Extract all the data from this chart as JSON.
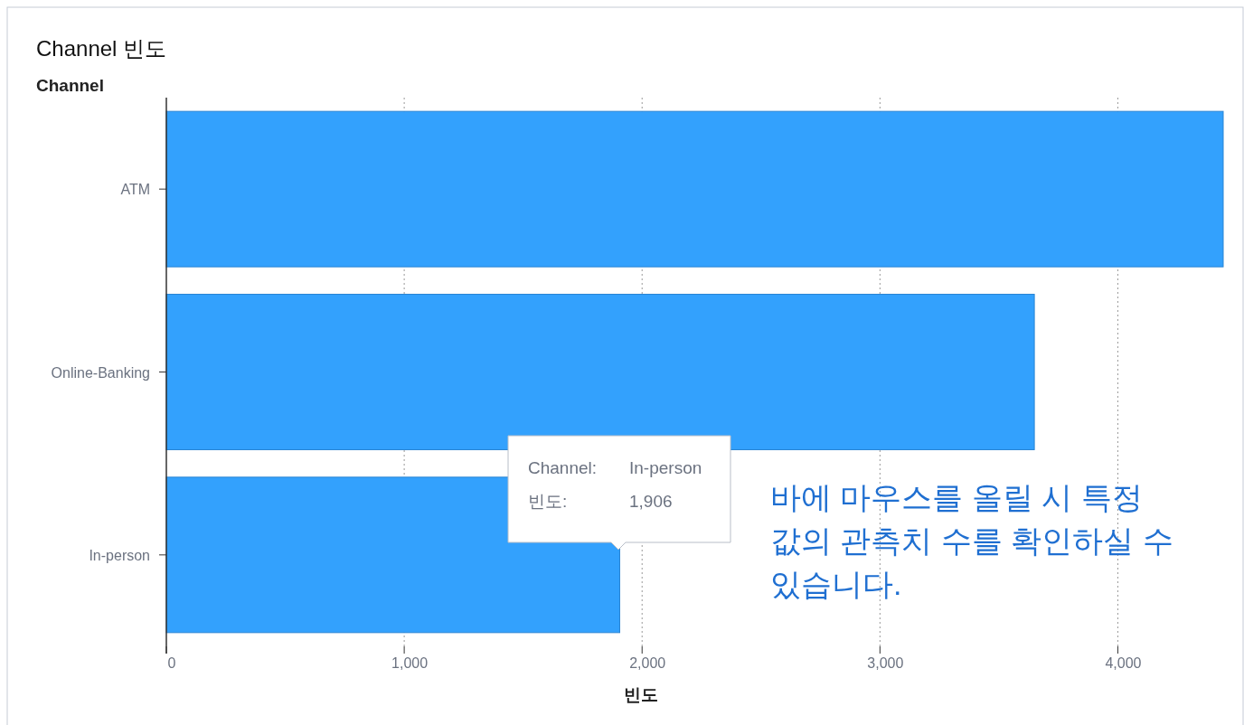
{
  "chart_data": {
    "type": "bar",
    "orientation": "horizontal",
    "title": "Channel 빈도",
    "ylabel": "Channel",
    "xlabel": "빈도",
    "categories": [
      "ATM",
      "Online-Banking",
      "In-person"
    ],
    "values": [
      4443,
      3649,
      1906
    ],
    "color": "#33a1fd",
    "xlim": [
      0,
      4443
    ],
    "xticks": [
      {
        "value": 0,
        "label": "0"
      },
      {
        "value": 1000,
        "label": "1,000"
      },
      {
        "value": 2000,
        "label": "2,000"
      },
      {
        "value": 3000,
        "label": "3,000"
      },
      {
        "value": 4000,
        "label": "4,000"
      }
    ],
    "grid": "x",
    "annotations": [
      "Channel:",
      "In-person",
      "빈도:",
      "1,906",
      "바에 마우스를 올릴 시 특정 값의 관측치 수를 확인하실 수 있습니다."
    ]
  }
}
